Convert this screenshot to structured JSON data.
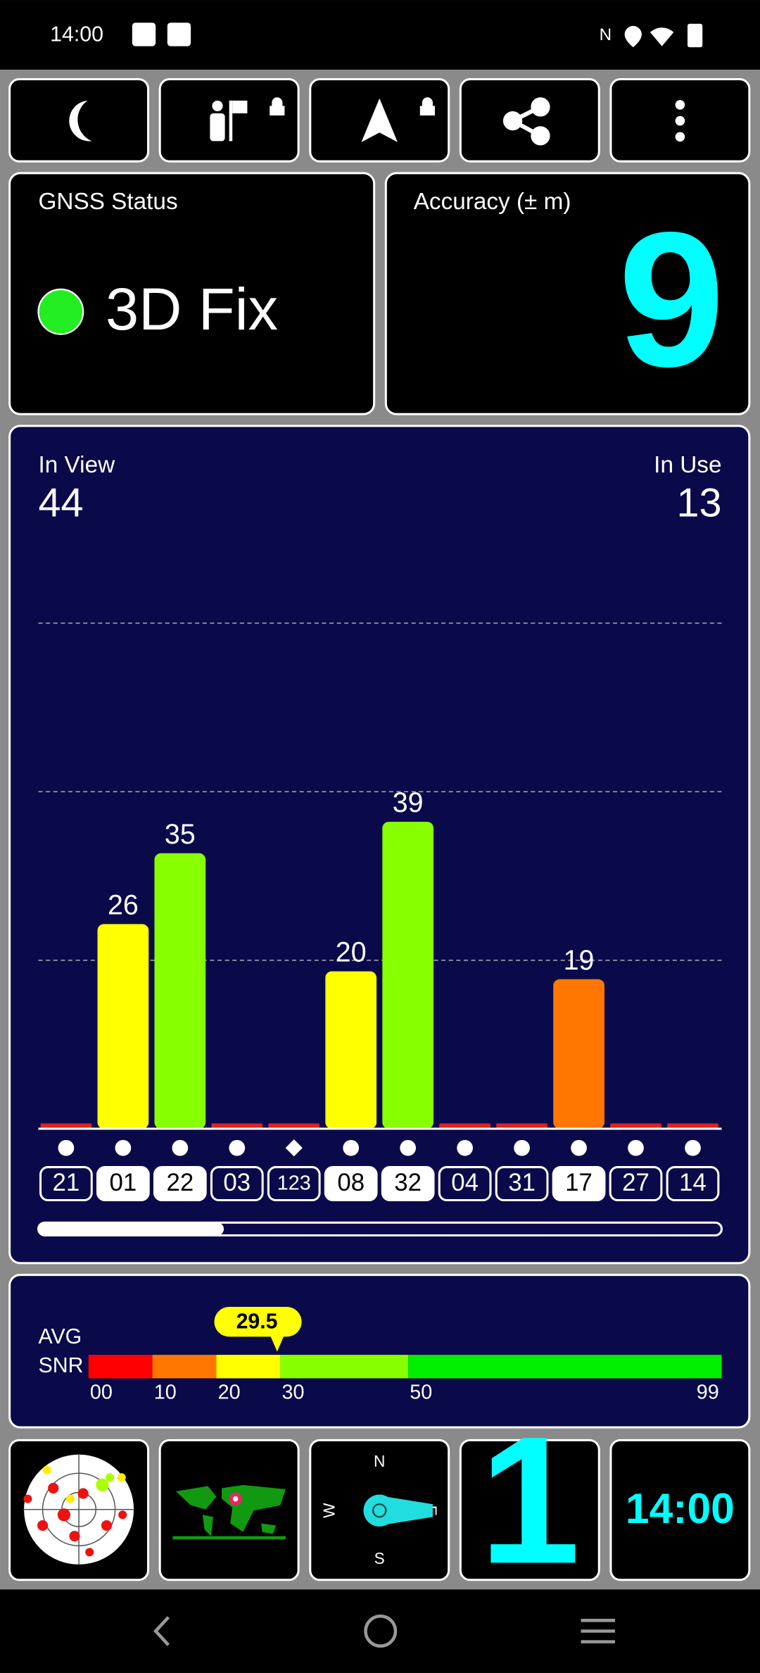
{
  "status_bar": {
    "time": "14:00"
  },
  "gnss_status": {
    "label": "GNSS Status",
    "fix": "3D Fix"
  },
  "accuracy": {
    "label": "Accuracy (± m)",
    "value": 9
  },
  "satellites": {
    "in_view_label": "In View",
    "in_view": 44,
    "in_use_label": "In Use",
    "in_use": 13,
    "ids": [
      "21",
      "01",
      "22",
      "03",
      "123",
      "08",
      "32",
      "04",
      "31",
      "17",
      "27",
      "14"
    ],
    "snr": [
      0,
      26,
      35,
      0,
      0,
      20,
      39,
      0,
      0,
      19,
      0,
      0
    ],
    "colors": [
      "#dd2222",
      "#ffff00",
      "#88ff00",
      "#dd2222",
      "#dd2222",
      "#ffff00",
      "#88ff00",
      "#dd2222",
      "#dd2222",
      "#ff7700",
      "#dd2222",
      "#dd2222"
    ],
    "used": [
      false,
      true,
      true,
      false,
      false,
      true,
      true,
      false,
      false,
      true,
      false,
      false
    ],
    "markers": [
      "dot",
      "dot",
      "dot",
      "dot",
      "diamond",
      "dot",
      "dot",
      "dot",
      "dot",
      "dot",
      "dot",
      "dot"
    ]
  },
  "avg_snr": {
    "label_1": "AVG",
    "label_2": "SNR",
    "value": "29.5",
    "scale_labels": [
      "00",
      "10",
      "20",
      "30",
      "50",
      "99"
    ]
  },
  "compass": {
    "n": "N",
    "s": "S",
    "w": "W",
    "e": "E"
  },
  "tiles": {
    "satellites_in_fix": 1,
    "clock": "14:00"
  }
}
